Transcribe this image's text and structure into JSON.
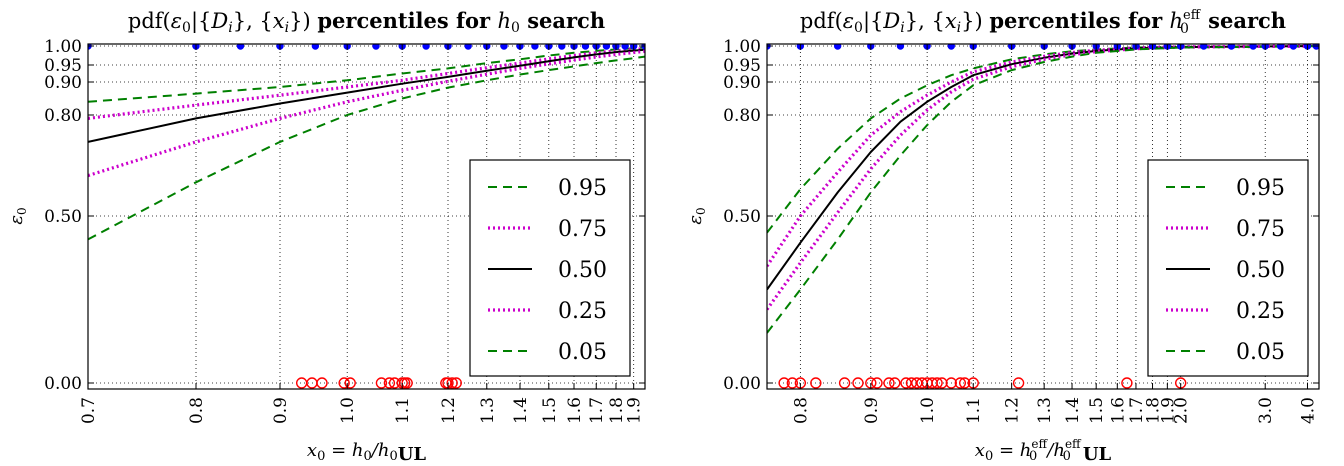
{
  "chart_data": [
    {
      "type": "line",
      "title": "pdf(ε₀|{Dᵢ}, {xᵢ}) percentiles for h₀ search",
      "xlabel": "x₀ = h₀/h₀UL",
      "ylabel": "ε₀",
      "xlim": [
        0.7,
        1.97
      ],
      "x_scale": "reciprocal",
      "y_scale": "nonlinear (compressed near 1)",
      "x_ticks": [
        0.7,
        0.8,
        0.9,
        1.0,
        1.1,
        1.2,
        1.3,
        1.4,
        1.5,
        1.6,
        1.7,
        1.8,
        1.9
      ],
      "x_tick_labels": [
        "0.7",
        "0.8",
        "0.9",
        "1.0",
        "1.1",
        "1.2",
        "1.3",
        "1.4",
        "1.5",
        "1.6",
        "1.7",
        "1.8",
        "1.9"
      ],
      "y_ticks": [
        0.0,
        0.5,
        0.8,
        0.9,
        0.95,
        1.0
      ],
      "y_tick_labels": [
        "0.00",
        "0.50",
        "0.80",
        "0.90",
        "0.95",
        "1.00"
      ],
      "grid": true,
      "legend_position": "right",
      "series": [
        {
          "name": "0.95",
          "style": "dashed",
          "color": "#008000",
          "x": [
            0.7,
            0.8,
            0.9,
            1.0,
            1.1,
            1.2,
            1.3,
            1.4,
            1.5,
            1.6,
            1.7,
            1.8,
            1.9,
            1.97
          ],
          "y": [
            0.84,
            0.865,
            0.885,
            0.905,
            0.925,
            0.94,
            0.955,
            0.965,
            0.975,
            0.982,
            0.987,
            0.991,
            0.994,
            0.996
          ]
        },
        {
          "name": "0.75",
          "style": "dotted",
          "color": "#cc00cc",
          "x": [
            0.7,
            0.8,
            0.9,
            1.0,
            1.1,
            1.2,
            1.3,
            1.4,
            1.5,
            1.6,
            1.7,
            1.8,
            1.9,
            1.97
          ],
          "y": [
            0.79,
            0.83,
            0.86,
            0.885,
            0.905,
            0.925,
            0.942,
            0.955,
            0.966,
            0.975,
            0.982,
            0.987,
            0.991,
            0.993
          ]
        },
        {
          "name": "0.50",
          "style": "solid",
          "color": "#000000",
          "x": [
            0.7,
            0.8,
            0.9,
            1.0,
            1.1,
            1.2,
            1.3,
            1.4,
            1.5,
            1.6,
            1.7,
            1.8,
            1.9,
            1.97
          ],
          "y": [
            0.72,
            0.79,
            0.835,
            0.868,
            0.895,
            0.915,
            0.933,
            0.948,
            0.96,
            0.97,
            0.978,
            0.984,
            0.988,
            0.99
          ]
        },
        {
          "name": "0.25",
          "style": "dotted",
          "color": "#cc00cc",
          "x": [
            0.7,
            0.8,
            0.9,
            1.0,
            1.1,
            1.2,
            1.3,
            1.4,
            1.5,
            1.6,
            1.7,
            1.8,
            1.9,
            1.97
          ],
          "y": [
            0.62,
            0.72,
            0.79,
            0.84,
            0.875,
            0.902,
            0.923,
            0.94,
            0.953,
            0.963,
            0.971,
            0.978,
            0.983,
            0.986
          ]
        },
        {
          "name": "0.05",
          "style": "dashed",
          "color": "#008000",
          "x": [
            0.7,
            0.8,
            0.9,
            1.0,
            1.1,
            1.2,
            1.3,
            1.4,
            1.5,
            1.6,
            1.7,
            1.8,
            1.9,
            1.97
          ],
          "y": [
            0.43,
            0.6,
            0.72,
            0.8,
            0.85,
            0.883,
            0.905,
            0.922,
            0.935,
            0.946,
            0.955,
            0.962,
            0.968,
            0.972
          ]
        }
      ],
      "detections_y1": {
        "color": "#0000ff",
        "marker": "filled-circle",
        "x": [
          0.7,
          0.8,
          0.85,
          0.9,
          0.95,
          1.0,
          1.05,
          1.1,
          1.15,
          1.2,
          1.25,
          1.3,
          1.35,
          1.4,
          1.45,
          1.5,
          1.55,
          1.6,
          1.65,
          1.7,
          1.75,
          1.8,
          1.85,
          1.9,
          1.97
        ]
      },
      "non_detections_y0": {
        "color": "#ff0000",
        "marker": "open-circle",
        "x": [
          0.93,
          0.945,
          0.96,
          0.995,
          1.005,
          1.06,
          1.075,
          1.085,
          1.1,
          1.105,
          1.11,
          1.195,
          1.2,
          1.21,
          1.22
        ]
      }
    },
    {
      "type": "line",
      "title": "pdf(ε₀|{Dᵢ}, {xᵢ}) percentiles for h₀ᵉᶠᶠ search",
      "xlabel": "x₀ = h₀ᵉᶠᶠ/h₀ᵉᶠᶠUL",
      "ylabel": "ε₀",
      "xlim": [
        0.76,
        4.4
      ],
      "x_scale": "reciprocal",
      "y_scale": "nonlinear (compressed near 1)",
      "x_ticks": [
        0.8,
        0.9,
        1.0,
        1.1,
        1.2,
        1.3,
        1.4,
        1.5,
        1.6,
        1.7,
        1.8,
        1.9,
        2.0,
        3.0,
        4.0
      ],
      "x_tick_labels": [
        "0.8",
        "0.9",
        "1.0",
        "1.1",
        "1.2",
        "1.3",
        "1.4",
        "1.5",
        "1.6",
        "1.7",
        "1.8",
        "1.9",
        "2.0",
        "3.0",
        "4.0"
      ],
      "y_ticks": [
        0.0,
        0.5,
        0.8,
        0.9,
        0.95,
        1.0
      ],
      "y_tick_labels": [
        "0.00",
        "0.50",
        "0.80",
        "0.90",
        "0.95",
        "1.00"
      ],
      "grid": true,
      "legend_position": "right",
      "series": [
        {
          "name": "0.95",
          "style": "dashed",
          "color": "#008000",
          "x": [
            0.76,
            0.8,
            0.85,
            0.9,
            0.95,
            1.0,
            1.05,
            1.1,
            1.2,
            1.3,
            1.4,
            1.5,
            1.7,
            2.0,
            3.0,
            4.4
          ],
          "y": [
            0.45,
            0.58,
            0.7,
            0.79,
            0.85,
            0.89,
            0.92,
            0.94,
            0.965,
            0.978,
            0.986,
            0.991,
            0.996,
            0.998,
            0.999,
            1.0
          ]
        },
        {
          "name": "0.75",
          "style": "dotted",
          "color": "#cc00cc",
          "x": [
            0.76,
            0.8,
            0.85,
            0.9,
            0.95,
            1.0,
            1.05,
            1.1,
            1.2,
            1.3,
            1.4,
            1.5,
            1.7,
            2.0,
            3.0,
            4.4
          ],
          "y": [
            0.35,
            0.5,
            0.63,
            0.74,
            0.81,
            0.86,
            0.9,
            0.93,
            0.958,
            0.973,
            0.983,
            0.989,
            0.995,
            0.998,
            0.999,
            1.0
          ]
        },
        {
          "name": "0.50",
          "style": "solid",
          "color": "#000000",
          "x": [
            0.76,
            0.8,
            0.85,
            0.9,
            0.95,
            1.0,
            1.05,
            1.1,
            1.2,
            1.3,
            1.4,
            1.5,
            1.7,
            2.0,
            3.0,
            4.4
          ],
          "y": [
            0.28,
            0.42,
            0.57,
            0.69,
            0.78,
            0.84,
            0.885,
            0.92,
            0.952,
            0.969,
            0.98,
            0.987,
            0.994,
            0.997,
            0.999,
            1.0
          ]
        },
        {
          "name": "0.25",
          "style": "dotted",
          "color": "#cc00cc",
          "x": [
            0.76,
            0.8,
            0.85,
            0.9,
            0.95,
            1.0,
            1.05,
            1.1,
            1.2,
            1.3,
            1.4,
            1.5,
            1.7,
            2.0,
            3.0,
            4.4
          ],
          "y": [
            0.22,
            0.36,
            0.51,
            0.64,
            0.74,
            0.815,
            0.87,
            0.908,
            0.945,
            0.965,
            0.977,
            0.985,
            0.993,
            0.997,
            0.999,
            1.0
          ]
        },
        {
          "name": "0.05",
          "style": "dashed",
          "color": "#008000",
          "x": [
            0.76,
            0.8,
            0.85,
            0.9,
            0.95,
            1.0,
            1.05,
            1.1,
            1.2,
            1.3,
            1.4,
            1.5,
            1.7,
            2.0,
            3.0,
            4.4
          ],
          "y": [
            0.15,
            0.28,
            0.43,
            0.57,
            0.68,
            0.77,
            0.84,
            0.89,
            0.935,
            0.958,
            0.972,
            0.982,
            0.991,
            0.996,
            0.998,
            1.0
          ]
        }
      ],
      "detections_y1": {
        "color": "#0000ff",
        "marker": "filled-circle",
        "x": [
          0.76,
          0.8,
          0.85,
          0.9,
          0.95,
          1.0,
          1.05,
          1.1,
          1.2,
          1.3,
          1.4,
          1.5,
          1.6,
          1.7,
          1.8,
          1.9,
          2.0,
          2.2,
          2.5,
          2.8,
          3.0,
          3.3,
          3.6,
          4.0,
          4.3
        ]
      },
      "non_detections_y0": {
        "color": "#ff0000",
        "marker": "open-circle",
        "x": [
          0.78,
          0.79,
          0.8,
          0.82,
          0.86,
          0.88,
          0.9,
          0.91,
          0.93,
          0.94,
          0.96,
          0.97,
          0.98,
          0.99,
          1.0,
          1.01,
          1.02,
          1.03,
          1.05,
          1.07,
          1.08,
          1.1,
          1.22,
          1.65,
          2.0
        ]
      }
    }
  ]
}
